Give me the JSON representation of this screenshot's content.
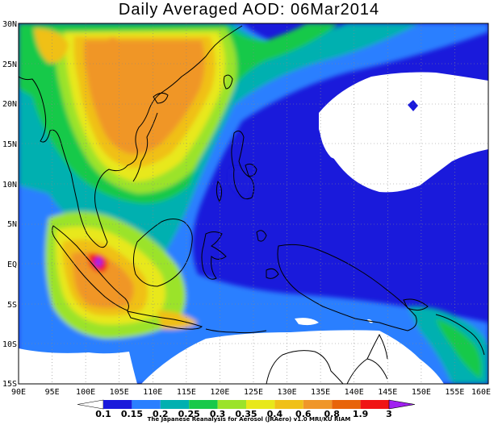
{
  "title": "Daily Averaged AOD: 06Mar2014",
  "latitude_labels": [
    "30N",
    "25N",
    "20N",
    "15N",
    "10N",
    "5N",
    "EQ",
    "5S",
    "10S",
    "15S"
  ],
  "longitude_labels": [
    "90E",
    "95E",
    "100E",
    "105E",
    "110E",
    "115E",
    "120E",
    "125E",
    "130E",
    "135E",
    "140E",
    "145E",
    "150E",
    "155E",
    "160E"
  ],
  "colorbar": {
    "labels": [
      "0.1",
      "0.15",
      "0.2",
      "0.25",
      "0.3",
      "0.35",
      "0.4",
      "0.6",
      "0.8",
      "1.9",
      "3"
    ],
    "colors": [
      "#1a1adb",
      "#2a7fff",
      "#00b0b0",
      "#19c94a",
      "#9be32a",
      "#e8e81a",
      "#f0c018",
      "#f09628",
      "#e8640a",
      "#f01414",
      "#a020f0"
    ]
  },
  "credit": "The Japanese Reanalysis for Aerosol (JRAero) v1.0 MRI/KU RIAM"
}
